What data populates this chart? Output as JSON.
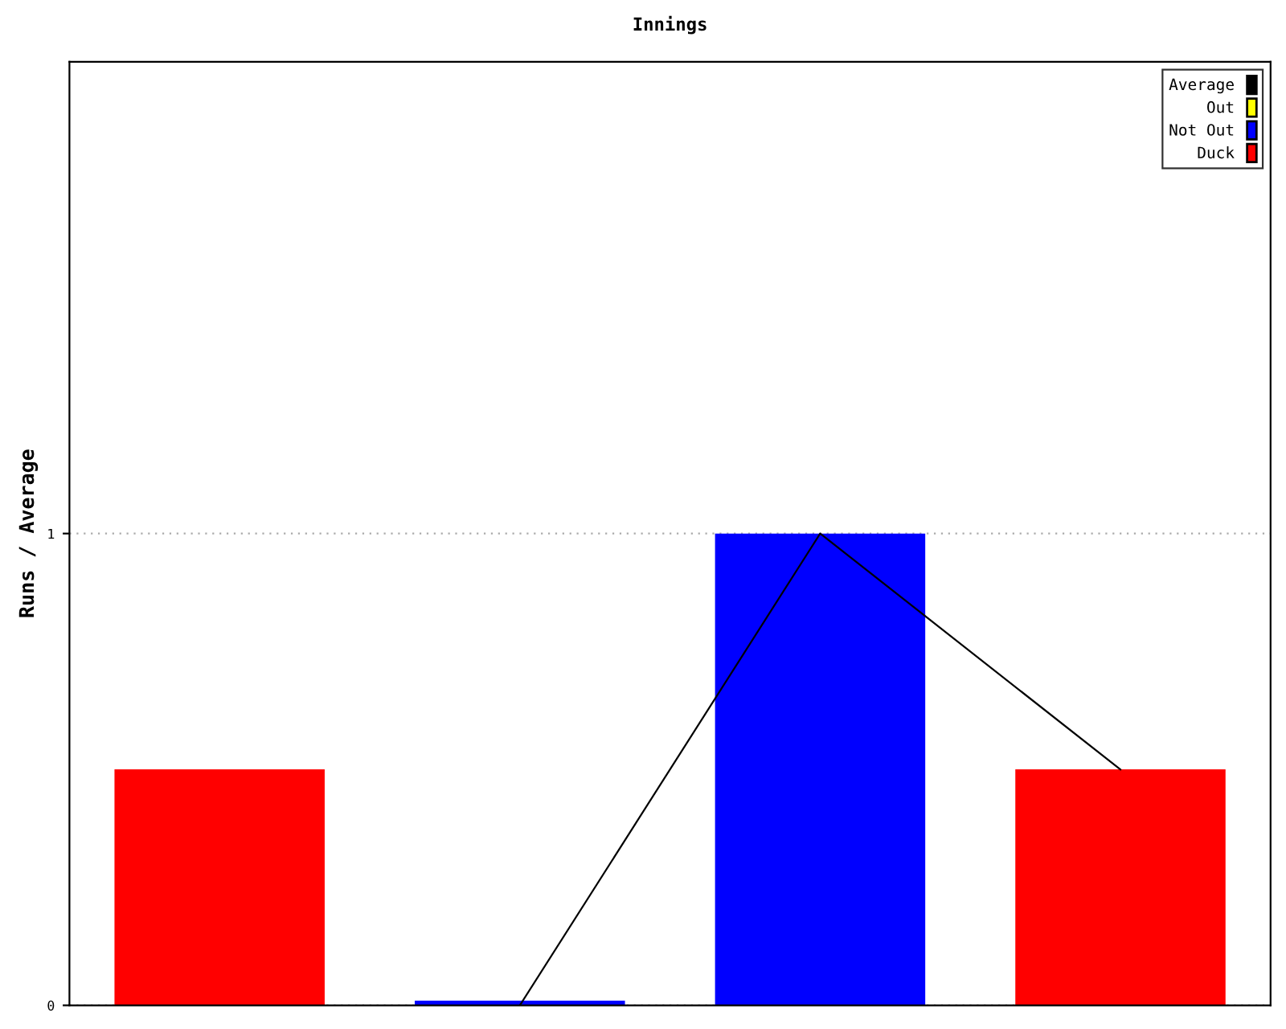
{
  "chart_data": {
    "type": "bar",
    "title": "Innings",
    "ylabel": "Runs / Average",
    "categories": [
      null,
      null,
      null,
      null
    ],
    "series": [
      {
        "name": "Average",
        "type": "line",
        "color": "#000000",
        "values": [
          null,
          0,
          1,
          0.5
        ]
      },
      {
        "name": "Out",
        "color": "#ffff00",
        "values": [
          null,
          null,
          null,
          null
        ]
      },
      {
        "name": "Not Out",
        "color": "#0000ff",
        "values": [
          null,
          0.01,
          1,
          null
        ]
      },
      {
        "name": "Duck",
        "color": "#ff0000",
        "values": [
          0.5,
          null,
          null,
          0.5
        ]
      }
    ],
    "ylim": [
      0,
      2
    ],
    "yticks": [
      0,
      1
    ],
    "grid": "y",
    "legend": "top right",
    "tick_labels": "y",
    "marker": "none"
  }
}
